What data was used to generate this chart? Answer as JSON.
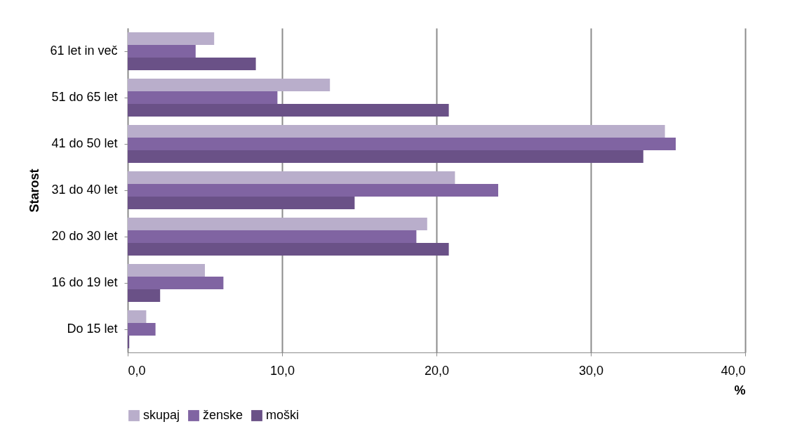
{
  "chart_data": {
    "type": "bar",
    "orientation": "horizontal",
    "ylabel": "Starost",
    "xlabel": "%",
    "categories": [
      "61 let in več",
      "51 do 65 let",
      "41 do 50 let",
      "31 do 40 let",
      "20 do 30 let",
      "16 do 19 let",
      "Do 15 let"
    ],
    "series": [
      {
        "name": "skupaj",
        "color": "#b9aecb",
        "values": [
          5.6,
          13.1,
          34.8,
          21.2,
          19.4,
          5.0,
          1.2
        ]
      },
      {
        "name": "ženske",
        "color": "#8064a2",
        "values": [
          4.4,
          9.7,
          35.5,
          24.0,
          18.7,
          6.2,
          1.8
        ]
      },
      {
        "name": "moški",
        "color": "#6a5187",
        "values": [
          8.3,
          20.8,
          33.4,
          14.7,
          20.8,
          2.1,
          0.1
        ]
      }
    ],
    "xlim": [
      0,
      40
    ],
    "xticks": [
      {
        "value": 0,
        "label": "0,0"
      },
      {
        "value": 10,
        "label": "10,0"
      },
      {
        "value": 20,
        "label": "20,0"
      },
      {
        "value": 30,
        "label": "30,0"
      },
      {
        "value": 40,
        "label": "40,0"
      }
    ],
    "grid": "x",
    "legend": "bottom"
  }
}
